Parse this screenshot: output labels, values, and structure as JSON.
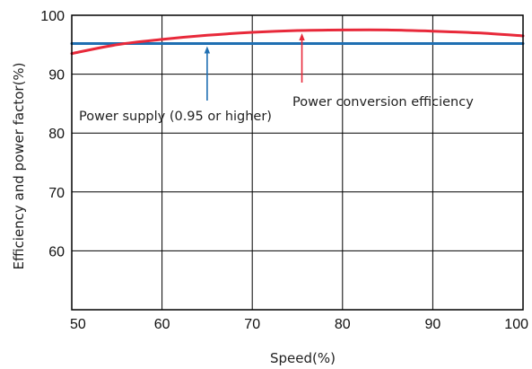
{
  "chart_data": {
    "type": "line",
    "xlabel": "Speed(%)",
    "ylabel": "Efficiency and power factor(%)",
    "xlim": [
      50,
      100
    ],
    "ylim": [
      50,
      100
    ],
    "x_ticks": [
      "50",
      "60",
      "70",
      "80",
      "90",
      "100"
    ],
    "y_ticks": [
      "60",
      "70",
      "80",
      "90",
      "100"
    ],
    "grid": true,
    "series": [
      {
        "name": "Power supply (0.95 or higher)",
        "color": "#1f6fb2",
        "x": [
          50,
          100
        ],
        "y": [
          95.2,
          95.2
        ]
      },
      {
        "name": "Power conversion efficiency",
        "color": "#e8293a",
        "x": [
          50,
          55,
          60,
          65,
          70,
          75,
          80,
          85,
          90,
          95,
          100
        ],
        "y": [
          93.5,
          95,
          95.9,
          96.6,
          97.1,
          97.4,
          97.5,
          97.5,
          97.3,
          97.0,
          96.5
        ]
      }
    ],
    "annotations": [
      {
        "text": "Power supply (0.95 or higher)",
        "series": 0,
        "arrow_at_x": 65
      },
      {
        "text": "Power conversion efficiency",
        "series": 1,
        "arrow_at_x": 75.5
      }
    ]
  }
}
